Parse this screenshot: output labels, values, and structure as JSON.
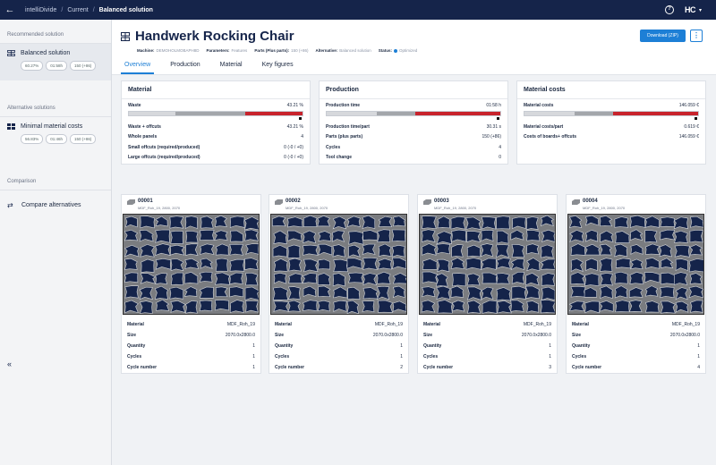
{
  "topbar": {
    "breadcrumbs": [
      "intelliDivide",
      "Current",
      "Balanced solution"
    ],
    "separator": "/",
    "help_icon": "question-circle-icon",
    "logo_text": "HC"
  },
  "sidebar": {
    "recommended_title": "Recommended solution",
    "recommended": {
      "label": "Balanced solution",
      "badges": [
        "60.27%",
        "01:58h",
        "150 (+86)"
      ]
    },
    "alternative_title": "Alternative solutions",
    "alternative": {
      "label": "Minimal material costs",
      "badges": [
        "56.83%",
        "01:46h",
        "150 (+86)"
      ]
    },
    "comparison_title": "Comparison",
    "compare_label": "Compare alternatives",
    "collapse_icon": "«"
  },
  "header": {
    "title": "Handwerk Rocking Chair",
    "meta": [
      {
        "label": "Machine:",
        "value": "DEMOHOLMOBAPH8D"
      },
      {
        "label": "Parameters:",
        "value": "Features"
      },
      {
        "label": "Parts (Plus parts):",
        "value": "150 (+86)"
      },
      {
        "label": "Alternative:",
        "value": "Balanced solution"
      },
      {
        "label": "Status:",
        "value": "Optimized"
      }
    ],
    "download_label": "Download (ZIP)",
    "more_label": "⋮"
  },
  "tabs": [
    "Overview",
    "Production",
    "Material",
    "Key figures"
  ],
  "cards": [
    {
      "title": "Material",
      "bar_label": "Waste",
      "bar_value": "43.21 %",
      "bar_fill": [
        0.27,
        0.4,
        0.33
      ],
      "rows": [
        {
          "label": "Waste + offcuts",
          "value": "43.21 %"
        },
        {
          "label": "Whole panels",
          "value": "4"
        },
        {
          "label": "Small offcuts (required/produced)",
          "value": "0 (-0 / +0)"
        },
        {
          "label": "Large offcuts (required/produced)",
          "value": "0 (-0 / +0)"
        }
      ]
    },
    {
      "title": "Production",
      "bar_label": "Production time",
      "bar_value": "01:58 h",
      "bar_fill": [
        0.29,
        0.22,
        0.49
      ],
      "rows": [
        {
          "label": "Production time/part",
          "value": "30.31 s"
        },
        {
          "label": "Parts (plus parts)",
          "value": "150 (+86)"
        },
        {
          "label": "Cycles",
          "value": "4"
        },
        {
          "label": "Tool change",
          "value": "0"
        }
      ]
    },
    {
      "title": "Material costs",
      "bar_label": "Material costs",
      "bar_value": "146.059 €",
      "bar_fill": [
        0.29,
        0.22,
        0.49
      ],
      "rows": [
        {
          "label": "Material costs/part",
          "value": "0.619 €"
        },
        {
          "label": "Costs of boards+ offcuts",
          "value": "146.059 €"
        }
      ]
    }
  ],
  "colors": {
    "accent": "#1d7fd6",
    "navy": "#15244a",
    "bar_light": "#d6d8dc",
    "bar_mid": "#a3a6ab",
    "bar_red": "#c8232c"
  },
  "patterns": [
    {
      "number": "00001",
      "subtitle": "MDF_Roh_19, 2800, 2070",
      "rows": [
        {
          "label": "Material",
          "value": "MDF_Roh_19"
        },
        {
          "label": "Size",
          "value": "2070.0x2800.0"
        },
        {
          "label": "Quantity",
          "value": "1"
        },
        {
          "label": "Cycles",
          "value": "1"
        },
        {
          "label": "Cycle number",
          "value": "1"
        }
      ]
    },
    {
      "number": "00002",
      "subtitle": "MDF_Roh_19, 2800, 2070",
      "rows": [
        {
          "label": "Material",
          "value": "MDF_Roh_19"
        },
        {
          "label": "Size",
          "value": "2070.0x2800.0"
        },
        {
          "label": "Quantity",
          "value": "1"
        },
        {
          "label": "Cycles",
          "value": "1"
        },
        {
          "label": "Cycle number",
          "value": "2"
        }
      ]
    },
    {
      "number": "00003",
      "subtitle": "MDF_Roh_19, 2800, 2070",
      "rows": [
        {
          "label": "Material",
          "value": "MDF_Roh_19"
        },
        {
          "label": "Size",
          "value": "2070.0x2800.0"
        },
        {
          "label": "Quantity",
          "value": "1"
        },
        {
          "label": "Cycles",
          "value": "1"
        },
        {
          "label": "Cycle number",
          "value": "3"
        }
      ]
    },
    {
      "number": "00004",
      "subtitle": "MDF_Roh_19, 2800, 2070",
      "rows": [
        {
          "label": "Material",
          "value": "MDF_Roh_19"
        },
        {
          "label": "Size",
          "value": "2070.0x2800.0"
        },
        {
          "label": "Quantity",
          "value": "1"
        },
        {
          "label": "Cycles",
          "value": "1"
        },
        {
          "label": "Cycle number",
          "value": "4"
        }
      ]
    }
  ]
}
